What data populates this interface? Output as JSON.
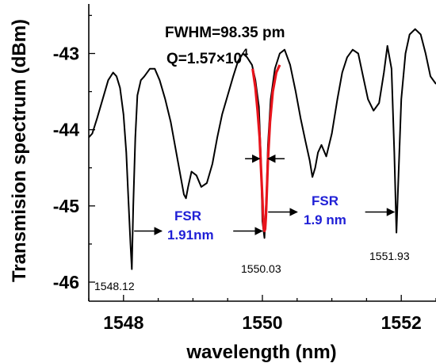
{
  "chart_data": {
    "type": "line",
    "xlabel": "wavelength (nm)",
    "ylabel": "Transmision spectrum (dBm)",
    "xlim": [
      1547.5,
      1552.5
    ],
    "ylim": [
      -46.25,
      -42.35
    ],
    "x_ticks": [
      1548,
      1550,
      1552
    ],
    "x_tick_labels": [
      "1548",
      "1550",
      "1552"
    ],
    "y_ticks": [
      -43,
      -44,
      -45,
      -46
    ],
    "y_tick_labels": [
      "-43",
      "-44",
      "-45",
      "-46"
    ],
    "grid": false,
    "annotations": {
      "fwhm": "FWHM=98.35 pm",
      "q_prefix": "Q=1.57×10",
      "q_exp": "4",
      "fsr1_line1": "FSR",
      "fsr1_line2": "1.91nm",
      "fsr2_line1": "FSR",
      "fsr2_line2": "1.9 nm",
      "dip1": "1548.12",
      "dip2": "1550.03",
      "dip3": "1551.93"
    },
    "colors": {
      "spectrum": "#000000",
      "fit": "#e8141c",
      "annotation_blue": "#1f1fd6"
    },
    "series": [
      {
        "name": "",
        "x": [
          1547.5,
          1547.55,
          1547.62,
          1547.7,
          1547.78,
          1547.85,
          1547.9,
          1547.95,
          1548.0,
          1548.04,
          1548.07,
          1548.1,
          1548.12,
          1548.14,
          1548.17,
          1548.2,
          1548.25,
          1548.3,
          1548.38,
          1548.45,
          1548.52,
          1548.6,
          1548.68,
          1548.75,
          1548.82,
          1548.87,
          1548.9,
          1548.93,
          1548.98,
          1549.05,
          1549.12,
          1549.2,
          1549.28,
          1549.35,
          1549.42,
          1549.5,
          1549.58,
          1549.65,
          1549.72,
          1549.78,
          1549.85,
          1549.9,
          1549.95,
          1549.98,
          1550.0,
          1550.03,
          1550.06,
          1550.08,
          1550.12,
          1550.18,
          1550.25,
          1550.32,
          1550.4,
          1550.48,
          1550.55,
          1550.62,
          1550.68,
          1550.72,
          1550.76,
          1550.8,
          1550.85,
          1550.92,
          1551.0,
          1551.08,
          1551.15,
          1551.22,
          1551.3,
          1551.38,
          1551.45,
          1551.52,
          1551.6,
          1551.68,
          1551.75,
          1551.8,
          1551.86,
          1551.9,
          1551.93,
          1551.96,
          1552.0,
          1552.06,
          1552.12,
          1552.2,
          1552.28,
          1552.35,
          1552.42,
          1552.5
        ],
        "y": [
          -44.1,
          -44.05,
          -43.85,
          -43.6,
          -43.35,
          -43.25,
          -43.3,
          -43.45,
          -43.8,
          -44.3,
          -44.9,
          -45.5,
          -45.83,
          -45.0,
          -44.1,
          -43.55,
          -43.35,
          -43.3,
          -43.2,
          -43.2,
          -43.35,
          -43.6,
          -43.9,
          -44.25,
          -44.6,
          -44.85,
          -44.9,
          -44.75,
          -44.55,
          -44.6,
          -44.75,
          -44.7,
          -44.45,
          -44.1,
          -43.8,
          -43.55,
          -43.3,
          -43.1,
          -43.0,
          -43.05,
          -43.15,
          -43.35,
          -43.7,
          -44.4,
          -45.2,
          -45.42,
          -44.8,
          -44.2,
          -43.6,
          -43.2,
          -43.0,
          -42.95,
          -43.15,
          -43.5,
          -43.85,
          -44.15,
          -44.4,
          -44.62,
          -44.5,
          -44.3,
          -44.2,
          -44.35,
          -44.05,
          -43.6,
          -43.25,
          -43.05,
          -42.95,
          -43.0,
          -43.3,
          -43.6,
          -43.75,
          -43.65,
          -43.25,
          -42.9,
          -43.2,
          -44.3,
          -45.35,
          -44.6,
          -43.6,
          -43.0,
          -42.75,
          -42.68,
          -42.75,
          -43.0,
          -43.3,
          -43.4
        ]
      },
      {
        "name": "",
        "x": [
          1549.86,
          1549.9,
          1549.93,
          1549.96,
          1549.98,
          1550.0,
          1550.01,
          1550.02,
          1550.03,
          1550.04,
          1550.05,
          1550.06,
          1550.08,
          1550.11,
          1550.15,
          1550.2,
          1550.25
        ],
        "y": [
          -43.2,
          -43.45,
          -43.75,
          -44.1,
          -44.5,
          -44.9,
          -45.15,
          -45.3,
          -45.33,
          -45.3,
          -45.15,
          -44.9,
          -44.4,
          -43.9,
          -43.5,
          -43.25,
          -43.15
        ]
      }
    ]
  }
}
